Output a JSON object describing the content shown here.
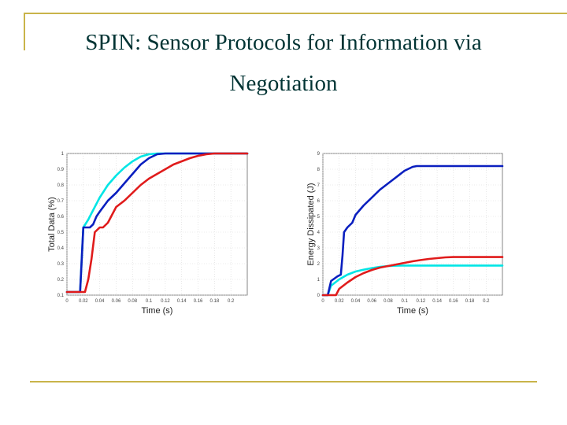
{
  "slide": {
    "title_line1": "SPIN: Sensor Protocols for Information via",
    "title_line2": "Negotiation"
  },
  "chart_data": [
    {
      "type": "line",
      "xlabel": "Time (s)",
      "ylabel": "Total Data (%)",
      "xlim": [
        0,
        0.22
      ],
      "ylim": [
        0.1,
        1
      ],
      "x_ticks": [
        "0",
        "0.02",
        "0.04",
        "0.06",
        "0.08",
        "0.1",
        "0.12",
        "0.14",
        "0.16",
        "0.18",
        "0.2"
      ],
      "y_ticks": [
        "0.1",
        "0.2",
        "0.3",
        "0.4",
        "0.5",
        "0.6",
        "0.7",
        "0.8",
        "0.9",
        "1"
      ],
      "grid": true,
      "series": [
        {
          "color": "#00e5e5",
          "x": [
            0,
            0.016,
            0.02,
            0.026,
            0.03,
            0.04,
            0.05,
            0.06,
            0.07,
            0.08,
            0.09,
            0.1,
            0.11,
            0.12,
            0.15,
            0.22
          ],
          "y": [
            0.12,
            0.12,
            0.53,
            0.58,
            0.62,
            0.72,
            0.8,
            0.86,
            0.91,
            0.95,
            0.98,
            0.995,
            1,
            1,
            1,
            1
          ]
        },
        {
          "color": "#0a1fbf",
          "x": [
            0,
            0.016,
            0.02,
            0.024,
            0.028,
            0.032,
            0.036,
            0.04,
            0.05,
            0.06,
            0.07,
            0.08,
            0.09,
            0.1,
            0.11,
            0.12,
            0.13,
            0.22
          ],
          "y": [
            0.12,
            0.12,
            0.53,
            0.53,
            0.53,
            0.55,
            0.6,
            0.63,
            0.7,
            0.75,
            0.81,
            0.87,
            0.93,
            0.97,
            0.995,
            1,
            1,
            1
          ]
        },
        {
          "color": "#e01b1b",
          "x": [
            0,
            0.022,
            0.026,
            0.03,
            0.034,
            0.04,
            0.044,
            0.05,
            0.06,
            0.07,
            0.08,
            0.09,
            0.1,
            0.11,
            0.12,
            0.13,
            0.14,
            0.15,
            0.16,
            0.17,
            0.18,
            0.19,
            0.22
          ],
          "y": [
            0.12,
            0.12,
            0.2,
            0.33,
            0.5,
            0.53,
            0.53,
            0.56,
            0.66,
            0.7,
            0.75,
            0.8,
            0.84,
            0.87,
            0.9,
            0.93,
            0.95,
            0.97,
            0.985,
            0.995,
            1,
            1,
            1
          ]
        }
      ]
    },
    {
      "type": "line",
      "xlabel": "Time (s)",
      "ylabel": "Energy Dissipated (J)",
      "xlim": [
        0,
        0.22
      ],
      "ylim": [
        0,
        9
      ],
      "x_ticks": [
        "0",
        "0.02",
        "0.04",
        "0.06",
        "0.08",
        "0.1",
        "0.12",
        "0.14",
        "0.16",
        "0.18",
        "0.2"
      ],
      "y_ticks": [
        "0",
        "1",
        "2",
        "3",
        "4",
        "5",
        "6",
        "7",
        "8",
        "9"
      ],
      "grid": true,
      "series": [
        {
          "color": "#00e5e5",
          "x": [
            0,
            0.006,
            0.01,
            0.02,
            0.03,
            0.04,
            0.05,
            0.06,
            0.07,
            0.08,
            0.09,
            0.1,
            0.22
          ],
          "y": [
            0,
            0,
            0.6,
            1.0,
            1.3,
            1.5,
            1.62,
            1.72,
            1.8,
            1.85,
            1.87,
            1.88,
            1.88
          ]
        },
        {
          "color": "#0a1fbf",
          "x": [
            0,
            0.006,
            0.01,
            0.018,
            0.022,
            0.024,
            0.026,
            0.03,
            0.036,
            0.04,
            0.05,
            0.06,
            0.07,
            0.08,
            0.09,
            0.1,
            0.11,
            0.115,
            0.12,
            0.13,
            0.22
          ],
          "y": [
            0,
            0,
            0.9,
            1.2,
            1.3,
            2.5,
            4.0,
            4.3,
            4.6,
            5.1,
            5.7,
            6.2,
            6.7,
            7.1,
            7.5,
            7.9,
            8.15,
            8.2,
            8.2,
            8.2,
            8.2
          ]
        },
        {
          "color": "#e01b1b",
          "x": [
            0,
            0.016,
            0.02,
            0.03,
            0.04,
            0.05,
            0.06,
            0.07,
            0.08,
            0.09,
            0.1,
            0.11,
            0.12,
            0.13,
            0.14,
            0.15,
            0.16,
            0.22
          ],
          "y": [
            0,
            0,
            0.4,
            0.8,
            1.15,
            1.4,
            1.6,
            1.75,
            1.85,
            1.95,
            2.05,
            2.15,
            2.23,
            2.3,
            2.35,
            2.4,
            2.42,
            2.42
          ]
        }
      ]
    }
  ]
}
